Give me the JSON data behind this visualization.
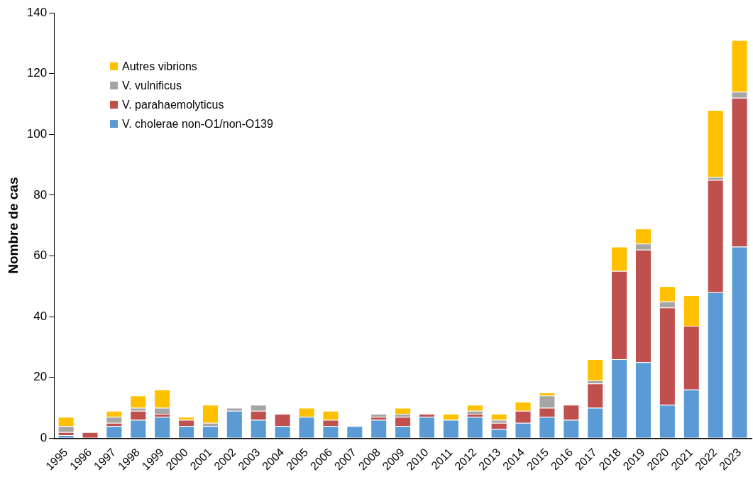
{
  "chart_data": {
    "type": "bar",
    "stacked": true,
    "ylabel": "Nombre de cas",
    "legend": "top left",
    "grid": false,
    "categories": [
      "1995",
      "1996",
      "1997",
      "1998",
      "1999",
      "2000",
      "2001",
      "2002",
      "2003",
      "2004",
      "2005",
      "2006",
      "2007",
      "2008",
      "2009",
      "2010",
      "2011",
      "2012",
      "2013",
      "2014",
      "2015",
      "2016",
      "2017",
      "2018",
      "2019",
      "2020",
      "2021",
      "2022",
      "2023"
    ],
    "ylim": [
      0,
      140
    ],
    "yticks": [
      0,
      20,
      40,
      60,
      80,
      100,
      120,
      140
    ],
    "series": [
      {
        "name": "V. cholerae non-O1/non-O139",
        "color": "#5b9bd5",
        "values": [
          1,
          0,
          4,
          6,
          7,
          4,
          4,
          9,
          6,
          4,
          7,
          4,
          4,
          6,
          4,
          7,
          6,
          7,
          3,
          5,
          7,
          6,
          10,
          26,
          25,
          11,
          16,
          48,
          63
        ]
      },
      {
        "name": "V. parahaemolyticus",
        "color": "#c0504d",
        "values": [
          1,
          2,
          1,
          3,
          1,
          2,
          0,
          0,
          3,
          4,
          0,
          2,
          0,
          1,
          3,
          1,
          0,
          1,
          2,
          4,
          3,
          5,
          8,
          29,
          37,
          32,
          21,
          37,
          49
        ]
      },
      {
        "name": "V. vulnificus",
        "color": "#a5a5a5",
        "values": [
          2,
          0,
          2,
          1,
          2,
          0,
          1,
          1,
          2,
          0,
          0,
          0,
          0,
          1,
          1,
          0,
          0,
          1,
          1,
          0,
          4,
          0,
          1,
          0,
          2,
          2,
          0,
          1,
          2
        ]
      },
      {
        "name": "Autres vibrions",
        "color": "#ffc000",
        "values": [
          3,
          0,
          2,
          4,
          6,
          1,
          6,
          0,
          0,
          0,
          3,
          3,
          0,
          0,
          2,
          0,
          2,
          2,
          2,
          3,
          1,
          0,
          7,
          8,
          5,
          5,
          10,
          22,
          17
        ]
      }
    ]
  }
}
